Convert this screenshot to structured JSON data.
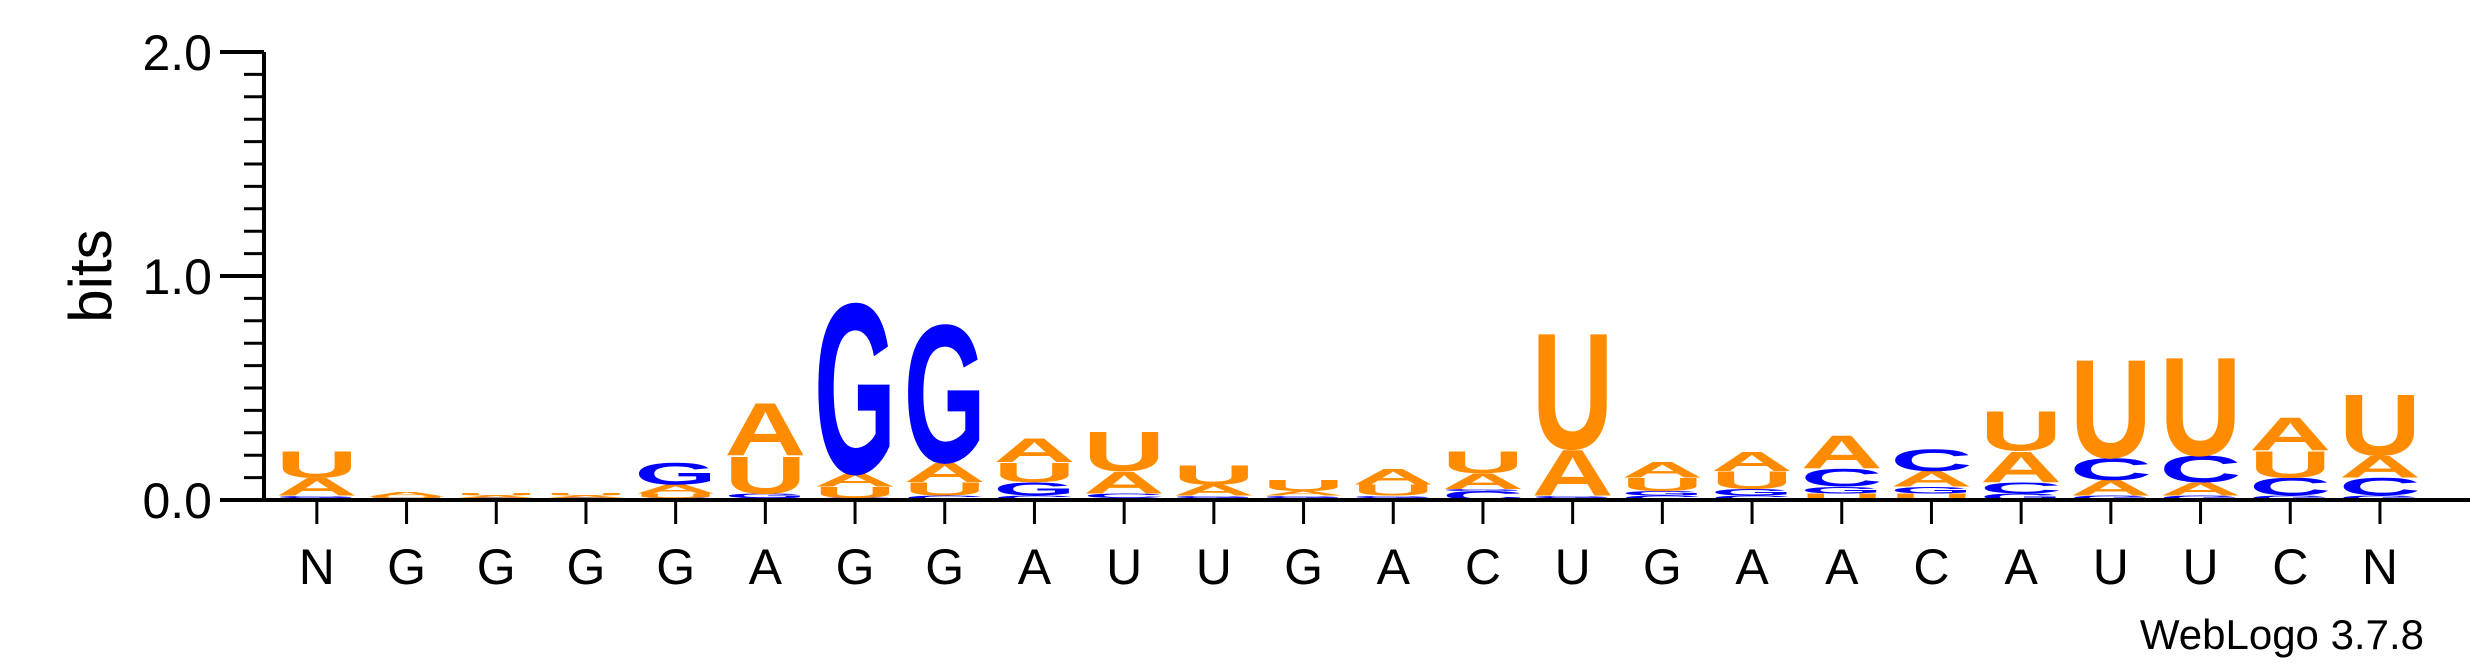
{
  "chart_data": {
    "type": "sequence-logo",
    "ylabel": "bits",
    "ylim": [
      0,
      2.0
    ],
    "yticks": [
      "0.0",
      "1.0",
      "2.0"
    ],
    "categories": [
      "N",
      "G",
      "G",
      "G",
      "G",
      "A",
      "G",
      "G",
      "A",
      "U",
      "U",
      "G",
      "A",
      "C",
      "U",
      "G",
      "A",
      "A",
      "C",
      "A",
      "U",
      "U",
      "C",
      "N"
    ],
    "colors": {
      "A": "#ff8c00",
      "U": "#ff8c00",
      "G": "#0000ff",
      "C": "#0000ff"
    },
    "stacks": [
      [
        {
          "l": "C",
          "v": 0.01
        },
        {
          "l": "G",
          "v": 0.01
        },
        {
          "l": "A",
          "v": 0.08
        },
        {
          "l": "U",
          "v": 0.12
        }
      ],
      [
        {
          "l": "G",
          "v": 0.005
        },
        {
          "l": "C",
          "v": 0.005
        },
        {
          "l": "U",
          "v": 0.005
        },
        {
          "l": "A",
          "v": 0.02
        }
      ],
      [
        {
          "l": "C",
          "v": 0.005
        },
        {
          "l": "G",
          "v": 0.005
        },
        {
          "l": "A",
          "v": 0.01
        },
        {
          "l": "U",
          "v": 0.01
        }
      ],
      [
        {
          "l": "C",
          "v": 0.005
        },
        {
          "l": "G",
          "v": 0.005
        },
        {
          "l": "A",
          "v": 0.01
        },
        {
          "l": "U",
          "v": 0.01
        }
      ],
      [
        {
          "l": "C",
          "v": 0.01
        },
        {
          "l": "U",
          "v": 0.02
        },
        {
          "l": "A",
          "v": 0.04
        },
        {
          "l": "G",
          "v": 0.1
        }
      ],
      [
        {
          "l": "C",
          "v": 0.01
        },
        {
          "l": "G",
          "v": 0.02
        },
        {
          "l": "U",
          "v": 0.17
        },
        {
          "l": "A",
          "v": 0.24
        }
      ],
      [
        {
          "l": "C",
          "v": 0.01
        },
        {
          "l": "U",
          "v": 0.05
        },
        {
          "l": "A",
          "v": 0.06
        },
        {
          "l": "G",
          "v": 0.78
        }
      ],
      [
        {
          "l": "C",
          "v": 0.02
        },
        {
          "l": "U",
          "v": 0.06
        },
        {
          "l": "A",
          "v": 0.09
        },
        {
          "l": "G",
          "v": 0.63
        }
      ],
      [
        {
          "l": "C",
          "v": 0.02
        },
        {
          "l": "G",
          "v": 0.06
        },
        {
          "l": "U",
          "v": 0.09
        },
        {
          "l": "A",
          "v": 0.11
        }
      ],
      [
        {
          "l": "G",
          "v": 0.01
        },
        {
          "l": "C",
          "v": 0.02
        },
        {
          "l": "A",
          "v": 0.1
        },
        {
          "l": "U",
          "v": 0.18
        }
      ],
      [
        {
          "l": "C",
          "v": 0.01
        },
        {
          "l": "G",
          "v": 0.01
        },
        {
          "l": "A",
          "v": 0.05
        },
        {
          "l": "U",
          "v": 0.09
        }
      ],
      [
        {
          "l": "C",
          "v": 0.01
        },
        {
          "l": "G",
          "v": 0.01
        },
        {
          "l": "A",
          "v": 0.02
        },
        {
          "l": "U",
          "v": 0.05
        }
      ],
      [
        {
          "l": "C",
          "v": 0.01
        },
        {
          "l": "G",
          "v": 0.01
        },
        {
          "l": "U",
          "v": 0.05
        },
        {
          "l": "A",
          "v": 0.07
        }
      ],
      [
        {
          "l": "C",
          "v": 0.04
        },
        {
          "l": "G",
          "v": 0.01
        },
        {
          "l": "A",
          "v": 0.07
        },
        {
          "l": "U",
          "v": 0.1
        }
      ],
      [
        {
          "l": "C",
          "v": 0.01
        },
        {
          "l": "G",
          "v": 0.01
        },
        {
          "l": "A",
          "v": 0.21
        },
        {
          "l": "U",
          "v": 0.53
        }
      ],
      [
        {
          "l": "C",
          "v": 0.02
        },
        {
          "l": "G",
          "v": 0.02
        },
        {
          "l": "U",
          "v": 0.06
        },
        {
          "l": "A",
          "v": 0.07
        }
      ],
      [
        {
          "l": "C",
          "v": 0.02
        },
        {
          "l": "G",
          "v": 0.03
        },
        {
          "l": "U",
          "v": 0.08
        },
        {
          "l": "A",
          "v": 0.09
        }
      ],
      [
        {
          "l": "U",
          "v": 0.03
        },
        {
          "l": "G",
          "v": 0.03
        },
        {
          "l": "C",
          "v": 0.08
        },
        {
          "l": "A",
          "v": 0.15
        }
      ],
      [
        {
          "l": "U",
          "v": 0.03
        },
        {
          "l": "G",
          "v": 0.03
        },
        {
          "l": "A",
          "v": 0.07
        },
        {
          "l": "C",
          "v": 0.1
        }
      ],
      [
        {
          "l": "G",
          "v": 0.03
        },
        {
          "l": "C",
          "v": 0.05
        },
        {
          "l": "A",
          "v": 0.14
        },
        {
          "l": "U",
          "v": 0.18
        }
      ],
      [
        {
          "l": "G",
          "v": 0.02
        },
        {
          "l": "A",
          "v": 0.07
        },
        {
          "l": "C",
          "v": 0.1
        },
        {
          "l": "U",
          "v": 0.45
        }
      ],
      [
        {
          "l": "G",
          "v": 0.02
        },
        {
          "l": "A",
          "v": 0.06
        },
        {
          "l": "C",
          "v": 0.12
        },
        {
          "l": "U",
          "v": 0.45
        }
      ],
      [
        {
          "l": "G",
          "v": 0.02
        },
        {
          "l": "C",
          "v": 0.08
        },
        {
          "l": "U",
          "v": 0.12
        },
        {
          "l": "A",
          "v": 0.15
        }
      ],
      [
        {
          "l": "G",
          "v": 0.02
        },
        {
          "l": "C",
          "v": 0.08
        },
        {
          "l": "A",
          "v": 0.1
        },
        {
          "l": "U",
          "v": 0.28
        }
      ]
    ]
  },
  "credit": "WebLogo 3.7.8"
}
